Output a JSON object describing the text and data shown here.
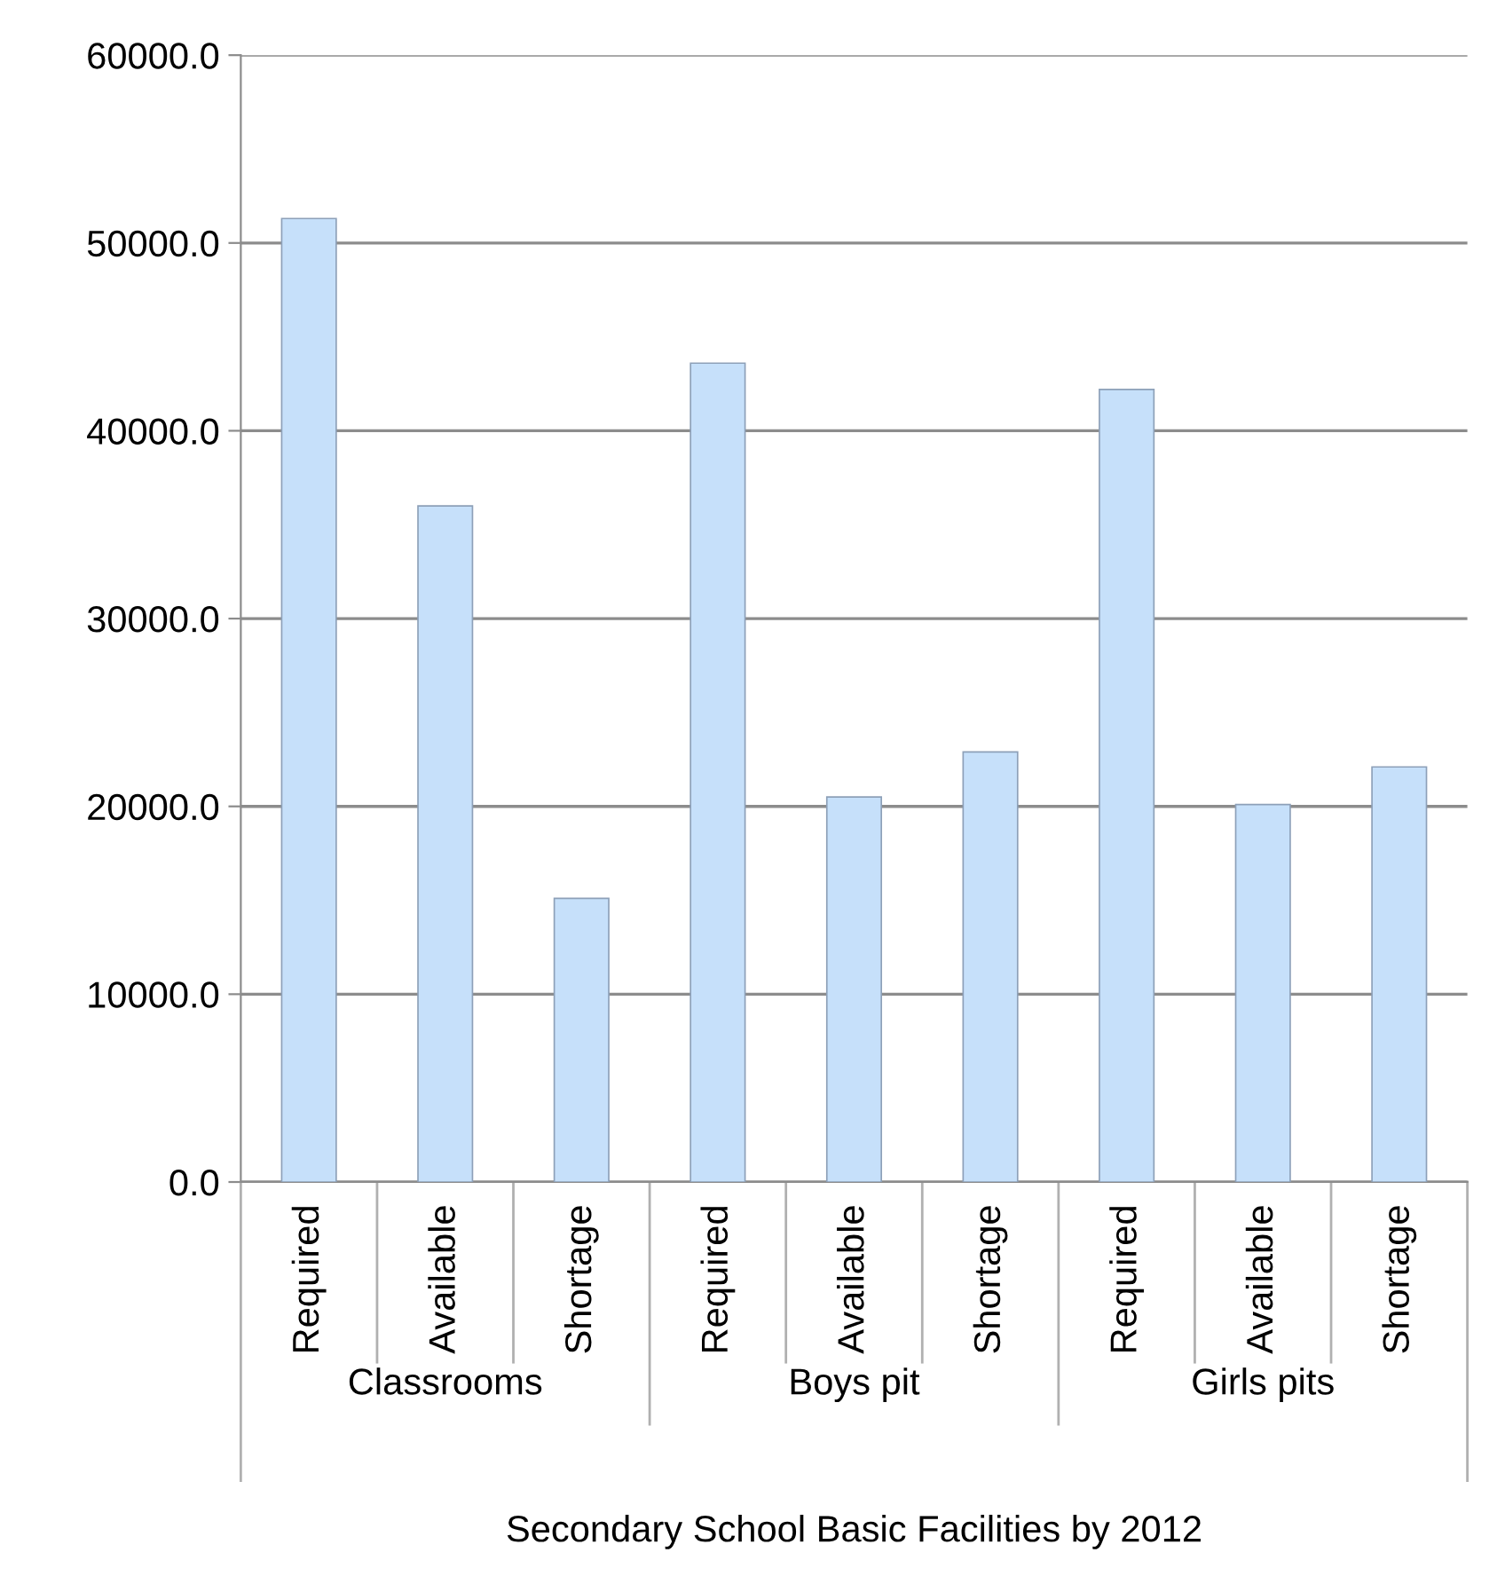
{
  "chart_data": {
    "type": "bar",
    "categories": [
      "Required",
      "Available",
      "Shortage",
      "Required",
      "Available",
      "Shortage",
      "Required",
      "Available",
      "Shortage"
    ],
    "values": [
      51300,
      36000,
      15100,
      43600,
      20500,
      22900,
      42200,
      20100,
      22100
    ],
    "color": "#c6e0fa",
    "annotations": [
      "Classrooms",
      "Boys pit",
      "Girls pits"
    ],
    "xlabel": "Secondary School Basic Facilities by 2012",
    "ylim": [
      0,
      60000
    ],
    "yticks": [
      {
        "value": 0,
        "label": "0.0"
      },
      {
        "value": 10000,
        "label": "10000.0"
      },
      {
        "value": 20000,
        "label": "20000.0"
      },
      {
        "value": 30000,
        "label": "30000.0"
      },
      {
        "value": 40000,
        "label": "40000.0"
      },
      {
        "value": 50000,
        "label": "50000.0"
      },
      {
        "value": 60000,
        "label": "60000.0"
      }
    ],
    "grid": "y"
  }
}
